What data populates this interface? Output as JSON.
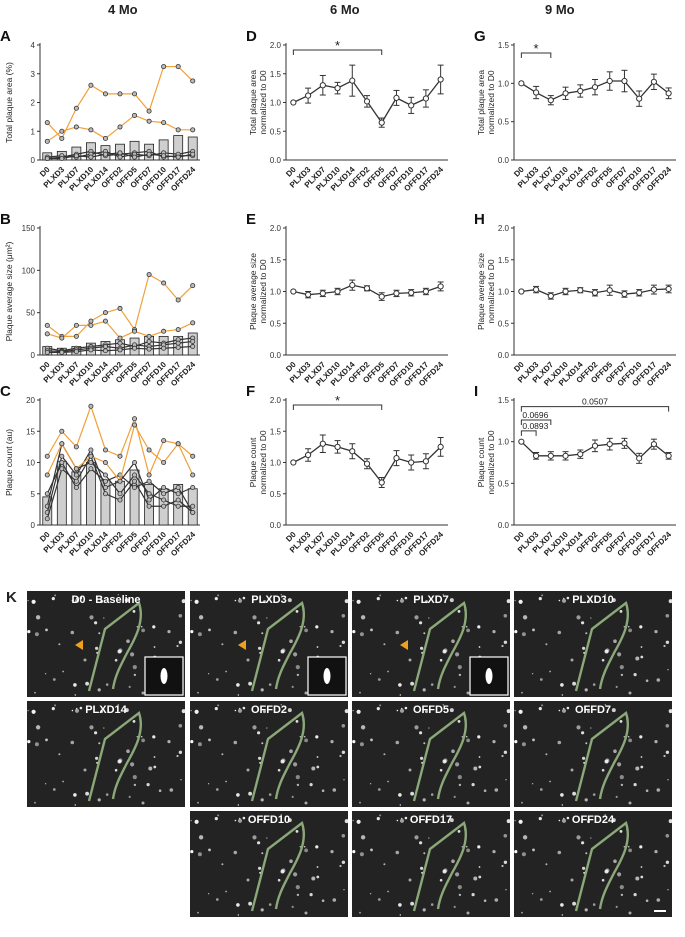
{
  "column_titles": [
    "4 Mo",
    "6 Mo",
    "9 Mo"
  ],
  "x_categories": [
    "D0",
    "PLXD3",
    "PLXD7",
    "PLXD10",
    "PLXD14",
    "OFFD2",
    "OFFD5",
    "OFFD7",
    "OFFD10",
    "OFFD17",
    "OFFD24"
  ],
  "chart_data": [
    {
      "id": "A",
      "type": "bar",
      "ylabel": "Total plaque area (%)",
      "ylim": [
        0,
        4
      ],
      "yticks": [
        0,
        1,
        2,
        3,
        4
      ],
      "categories": [
        "D0",
        "PLXD3",
        "PLXD7",
        "PLXD10",
        "PLXD14",
        "OFFD2",
        "OFFD5",
        "OFFD7",
        "OFFD10",
        "OFFD17",
        "OFFD24"
      ],
      "values": [
        0.25,
        0.3,
        0.45,
        0.6,
        0.5,
        0.55,
        0.65,
        0.55,
        0.7,
        0.85,
        0.8
      ],
      "lines_orange": [
        [
          1.3,
          0.75,
          1.8,
          2.6,
          2.3,
          2.3,
          2.3,
          1.7,
          3.25,
          3.25,
          2.75
        ],
        [
          0.65,
          1.0,
          1.15,
          1.05,
          0.75,
          1.15,
          1.55,
          1.35,
          1.3,
          1.05,
          1.05
        ]
      ],
      "lines_black": [
        [
          0.05,
          0.1,
          0.2,
          0.3,
          0.15,
          0.2,
          0.25,
          0.3,
          0.1,
          0.15,
          0.15
        ],
        [
          0.1,
          0.15,
          0.1,
          0.2,
          0.3,
          0.1,
          0.2,
          0.15,
          0.25,
          0.2,
          0.3
        ],
        [
          0.05,
          0.05,
          0.15,
          0.1,
          0.2,
          0.25,
          0.1,
          0.2,
          0.15,
          0.1,
          0.2
        ]
      ]
    },
    {
      "id": "B",
      "type": "bar",
      "ylabel": "Plaque average size (μm²)",
      "ylim": [
        0,
        150
      ],
      "yticks": [
        0,
        50,
        100,
        150
      ],
      "categories": [
        "D0",
        "PLXD3",
        "PLXD7",
        "PLXD10",
        "PLXD14",
        "OFFD2",
        "OFFD5",
        "OFFD7",
        "OFFD10",
        "OFFD17",
        "OFFD24"
      ],
      "values": [
        10,
        8,
        10,
        14,
        16,
        18,
        20,
        22,
        22,
        22,
        26
      ],
      "lines_orange": [
        [
          35,
          22,
          22,
          40,
          50,
          55,
          30,
          95,
          85,
          65,
          82
        ],
        [
          25,
          20,
          35,
          35,
          40,
          20,
          28,
          22,
          28,
          30,
          38
        ]
      ],
      "lines_black": [
        [
          8,
          5,
          8,
          10,
          12,
          14,
          10,
          16,
          14,
          18,
          20
        ],
        [
          5,
          4,
          6,
          8,
          10,
          8,
          12,
          10,
          12,
          14,
          16
        ],
        [
          3,
          3,
          4,
          6,
          5,
          6,
          8,
          7,
          8,
          9,
          10
        ]
      ]
    },
    {
      "id": "C",
      "type": "bar",
      "ylabel": "Plaque count (au)",
      "ylim": [
        0,
        20
      ],
      "yticks": [
        0,
        5,
        10,
        15,
        20
      ],
      "categories": [
        "D0",
        "PLXD3",
        "PLXD7",
        "PLXD10",
        "PLXD14",
        "OFFD2",
        "OFFD5",
        "OFFD7",
        "OFFD10",
        "OFFD17",
        "OFFD24"
      ],
      "values": [
        4.5,
        10.2,
        8.5,
        10.0,
        7.2,
        7.0,
        8.8,
        6.5,
        5.8,
        6.5,
        5.8
      ],
      "lines_orange": [
        [
          11,
          15,
          12.5,
          19,
          12,
          11,
          17,
          8,
          13.5,
          13,
          8
        ],
        [
          8,
          13,
          9,
          11,
          10,
          7,
          16,
          12,
          10,
          13,
          11
        ]
      ],
      "lines_black": [
        [
          3,
          13,
          9,
          10,
          8,
          5,
          8,
          5,
          4,
          3,
          3
        ],
        [
          2,
          11,
          8,
          12,
          6,
          7,
          10,
          4,
          6,
          5,
          6
        ],
        [
          5,
          10,
          6,
          9,
          7,
          8,
          6,
          7,
          5,
          6,
          2
        ],
        [
          1,
          9,
          7,
          11,
          5,
          4,
          7,
          3,
          3,
          4,
          2
        ]
      ]
    },
    {
      "id": "D",
      "type": "line",
      "ylabel": "Total plaque area normalized to D0",
      "ylim": [
        0,
        2
      ],
      "yticks": [
        "0.0",
        "0.5",
        "1.0",
        "1.5",
        "2.0"
      ],
      "categories": [
        "D0",
        "PLXD3",
        "PLXD7",
        "PLXD10",
        "PLXD14",
        "OFFD2",
        "OFFD5",
        "OFFD7",
        "OFFD10",
        "OFFD17",
        "OFFD24"
      ],
      "values": [
        1.0,
        1.12,
        1.3,
        1.25,
        1.38,
        1.02,
        0.65,
        1.08,
        0.95,
        1.07,
        1.4
      ],
      "errors": [
        0,
        0.13,
        0.17,
        0.1,
        0.27,
        0.1,
        0.08,
        0.13,
        0.14,
        0.15,
        0.25
      ],
      "annotation": {
        "text": "*",
        "from": 0,
        "to": 6
      }
    },
    {
      "id": "E",
      "type": "line",
      "ylabel": "Plaque average size normalized to D0",
      "ylim": [
        0,
        2
      ],
      "yticks": [
        "0.0",
        "0.5",
        "1.0",
        "1.5",
        "2.0"
      ],
      "categories": [
        "D0",
        "PLXD3",
        "PLXD7",
        "PLXD10",
        "PLXD14",
        "OFFD2",
        "OFFD5",
        "OFFD7",
        "OFFD10",
        "OFFD17",
        "OFFD24"
      ],
      "values": [
        1.0,
        0.95,
        0.97,
        1.0,
        1.1,
        1.05,
        0.92,
        0.97,
        0.98,
        1.0,
        1.08
      ],
      "errors": [
        0,
        0.05,
        0.05,
        0.05,
        0.08,
        0.04,
        0.06,
        0.05,
        0.05,
        0.05,
        0.07
      ]
    },
    {
      "id": "F",
      "type": "line",
      "ylabel": "Plaque count normalized to D0",
      "ylim": [
        0,
        2
      ],
      "yticks": [
        "0.0",
        "0.5",
        "1.0",
        "1.5",
        "2.0"
      ],
      "categories": [
        "D0",
        "PLXD3",
        "PLXD7",
        "PLXD10",
        "PLXD14",
        "OFFD2",
        "OFFD5",
        "OFFD7",
        "OFFD10",
        "OFFD17",
        "OFFD24"
      ],
      "values": [
        1.0,
        1.12,
        1.3,
        1.25,
        1.18,
        0.98,
        0.68,
        1.07,
        1.0,
        1.02,
        1.25
      ],
      "errors": [
        0,
        0.1,
        0.14,
        0.1,
        0.12,
        0.08,
        0.08,
        0.12,
        0.12,
        0.12,
        0.15
      ],
      "annotation": {
        "text": "*",
        "from": 0,
        "to": 6
      }
    },
    {
      "id": "G",
      "type": "line",
      "ylabel": "Total plaque area normalized to D0",
      "ylim": [
        0,
        1.5
      ],
      "yticks": [
        "0.0",
        "0.5",
        "1.0",
        "1.5"
      ],
      "categories": [
        "D0",
        "PLXD3",
        "PLXD7",
        "PLXD10",
        "PLXD14",
        "OFFD2",
        "OFFD5",
        "OFFD7",
        "OFFD10",
        "OFFD17",
        "OFFD24"
      ],
      "values": [
        1.0,
        0.88,
        0.78,
        0.87,
        0.9,
        0.95,
        1.03,
        1.03,
        0.8,
        1.02,
        0.87
      ],
      "errors": [
        0,
        0.08,
        0.06,
        0.08,
        0.08,
        0.1,
        0.12,
        0.14,
        0.1,
        0.1,
        0.07
      ],
      "annotation": {
        "text": "*",
        "from": 0,
        "to": 2
      }
    },
    {
      "id": "H",
      "type": "line",
      "ylabel": "Plaque average size normalized to D0",
      "ylim": [
        0,
        2
      ],
      "yticks": [
        "0.0",
        "0.5",
        "1.0",
        "1.5",
        "2.0"
      ],
      "categories": [
        "D0",
        "PLXD3",
        "PLXD7",
        "PLXD10",
        "PLXD14",
        "OFFD2",
        "OFFD5",
        "OFFD7",
        "OFFD10",
        "OFFD17",
        "OFFD24"
      ],
      "values": [
        1.0,
        1.03,
        0.93,
        1.0,
        1.02,
        0.98,
        1.02,
        0.96,
        0.98,
        1.03,
        1.04
      ],
      "errors": [
        0,
        0.05,
        0.05,
        0.05,
        0.04,
        0.05,
        0.08,
        0.05,
        0.05,
        0.07,
        0.06
      ]
    },
    {
      "id": "I",
      "type": "line",
      "ylabel": "Plaque count normalized to D0",
      "ylim": [
        0,
        1.5
      ],
      "yticks": [
        "0.0",
        "0.5",
        "1.0",
        "1.5"
      ],
      "categories": [
        "D0",
        "PLXD3",
        "PLXD7",
        "PLXD10",
        "PLXD14",
        "OFFD2",
        "OFFD5",
        "OFFD7",
        "OFFD10",
        "OFFD17",
        "OFFD24"
      ],
      "values": [
        1.0,
        0.83,
        0.83,
        0.83,
        0.85,
        0.95,
        0.97,
        0.98,
        0.8,
        0.97,
        0.83
      ],
      "errors": [
        0,
        0.04,
        0.05,
        0.05,
        0.05,
        0.07,
        0.07,
        0.06,
        0.06,
        0.06,
        0.04
      ],
      "annotations": [
        {
          "text": "0.0893",
          "from": 0,
          "to": 1
        },
        {
          "text": "0.0696",
          "from": 0,
          "to": 2
        },
        {
          "text": "0.0507",
          "from": 0,
          "to": 10
        }
      ]
    }
  ],
  "panel_K": {
    "letter": "K",
    "tiles": [
      {
        "label": "D0 - Baseline",
        "arrow": true,
        "inset": true
      },
      {
        "label": "PLXD3",
        "arrow": true,
        "inset": true
      },
      {
        "label": "PLXD7",
        "arrow": true,
        "inset": true
      },
      {
        "label": "PLXD10"
      },
      {
        "label": "PLXD14"
      },
      {
        "label": "OFFD2"
      },
      {
        "label": "OFFD5"
      },
      {
        "label": "OFFD7"
      },
      {
        "label": "OFFD10"
      },
      {
        "label": "OFFD17"
      },
      {
        "label": "OFFD24"
      }
    ]
  },
  "colors": {
    "orange": "#f2a03a",
    "bar": "#cfcfcf",
    "line": "#333333",
    "outline": "#8aa878",
    "tile_bg": "#232323"
  }
}
